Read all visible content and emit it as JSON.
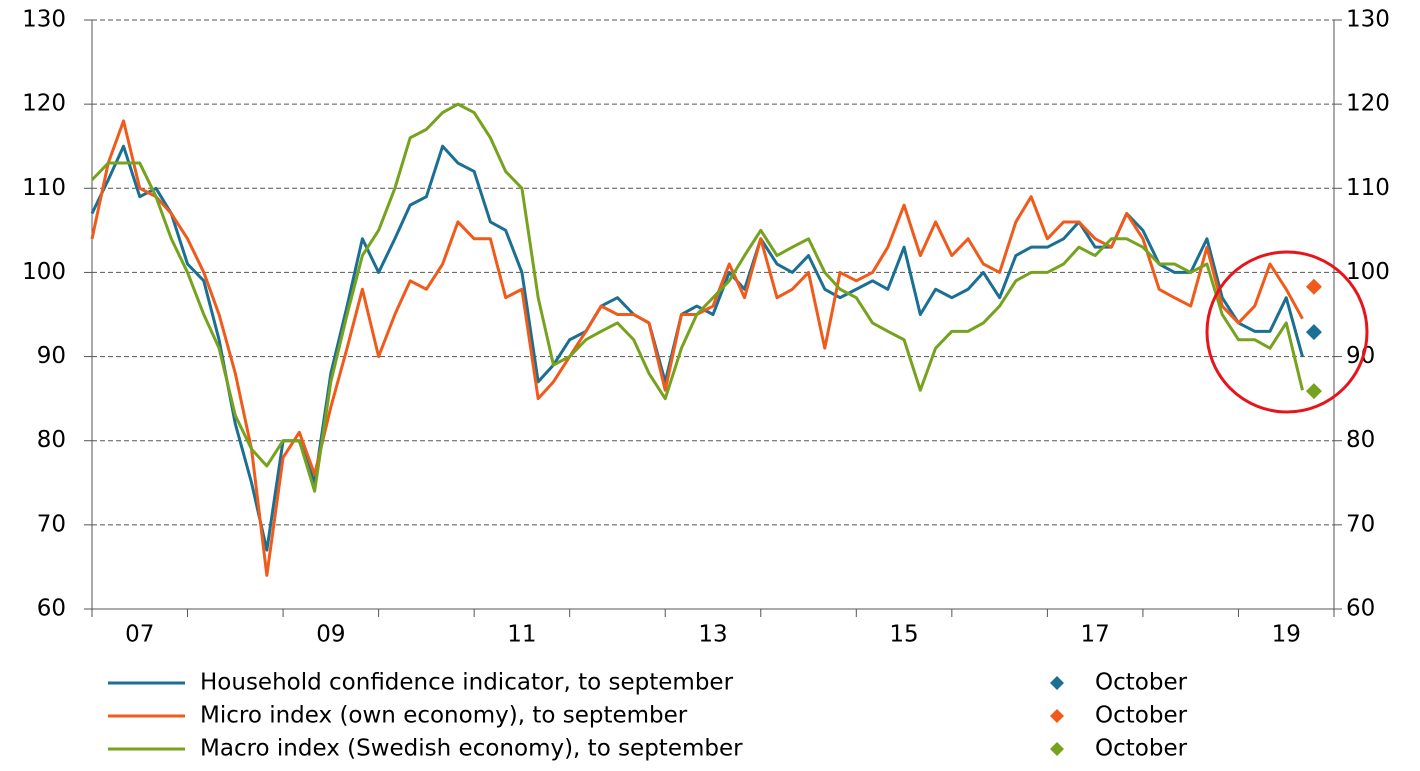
{
  "chart_data": {
    "type": "line",
    "x": [
      2007,
      2007.17,
      2007.33,
      2007.5,
      2007.67,
      2007.83,
      2008,
      2008.17,
      2008.33,
      2008.5,
      2008.67,
      2008.83,
      2009,
      2009.17,
      2009.33,
      2009.5,
      2009.67,
      2009.83,
      2010,
      2010.17,
      2010.33,
      2010.5,
      2010.67,
      2010.83,
      2011,
      2011.17,
      2011.33,
      2011.5,
      2011.67,
      2011.83,
      2012,
      2012.17,
      2012.33,
      2012.5,
      2012.67,
      2012.83,
      2013,
      2013.17,
      2013.33,
      2013.5,
      2013.67,
      2013.83,
      2014,
      2014.17,
      2014.33,
      2014.5,
      2014.67,
      2014.83,
      2015,
      2015.17,
      2015.33,
      2015.5,
      2015.67,
      2015.83,
      2016,
      2016.17,
      2016.33,
      2016.5,
      2016.67,
      2016.83,
      2017,
      2017.17,
      2017.33,
      2017.5,
      2017.67,
      2017.83,
      2018,
      2018.17,
      2018.33,
      2018.5,
      2018.67,
      2018.83,
      2019,
      2019.17,
      2019.33,
      2019.5,
      2019.67
    ],
    "series": [
      {
        "name": "Household confidence indicator, to september",
        "color": "#1a6f93",
        "values": [
          107,
          111,
          115,
          109,
          110,
          107,
          101,
          99,
          92,
          82,
          75,
          67,
          80,
          80,
          75,
          88,
          96,
          104,
          100,
          104,
          108,
          109,
          115,
          113,
          112,
          106,
          105,
          100,
          87,
          89,
          92,
          93,
          96,
          97,
          95,
          94,
          87,
          95,
          96,
          95,
          100,
          98,
          104,
          101,
          100,
          102,
          98,
          97,
          98,
          99,
          98,
          103,
          95,
          98,
          97,
          98,
          100,
          97,
          102,
          103,
          103,
          104,
          106,
          103,
          103,
          107,
          105,
          101,
          100,
          100,
          104,
          97,
          94,
          93,
          93,
          97,
          90
        ]
      },
      {
        "name": "Micro index (own economy), to september",
        "color": "#f05a1a",
        "values": [
          104,
          113,
          118,
          110,
          109,
          107,
          104,
          100,
          95,
          88,
          79,
          64,
          78,
          81,
          76,
          84,
          91,
          98,
          90,
          95,
          99,
          98,
          101,
          106,
          104,
          104,
          97,
          98,
          85,
          87,
          90,
          93,
          96,
          95,
          95,
          94,
          86,
          95,
          95,
          96,
          101,
          97,
          104,
          97,
          98,
          100,
          91,
          100,
          99,
          100,
          103,
          108,
          102,
          106,
          102,
          104,
          101,
          100,
          106,
          109,
          104,
          106,
          106,
          104,
          103,
          107,
          104,
          98,
          97,
          96,
          103,
          96,
          94,
          96,
          101,
          98,
          94.5
        ]
      },
      {
        "name": "Macro index (Swedish economy), to september",
        "color": "#76a21e",
        "values": [
          111,
          113,
          113,
          113,
          109,
          104,
          100,
          95,
          91,
          83,
          79,
          77,
          80,
          80,
          74,
          87,
          95,
          102,
          105,
          110,
          116,
          117,
          119,
          120,
          119,
          116,
          112,
          110,
          97,
          89,
          90,
          92,
          93,
          94,
          92,
          88,
          85,
          91,
          95,
          97,
          99,
          102,
          105,
          102,
          103,
          104,
          100,
          98,
          97,
          94,
          93,
          92,
          86,
          91,
          93,
          93,
          94,
          96,
          99,
          100,
          100,
          101,
          103,
          102,
          104,
          104,
          103,
          101,
          101,
          100,
          101,
          95,
          92,
          92,
          91,
          94,
          86
        ]
      }
    ],
    "october": [
      {
        "name": "October",
        "color": "#1a6f93",
        "x": 2019.79,
        "value": 92.9
      },
      {
        "name": "October",
        "color": "#f05a1a",
        "x": 2019.79,
        "value": 98.3
      },
      {
        "name": "October",
        "color": "#76a21e",
        "x": 2019.79,
        "value": 85.9
      }
    ],
    "xlim": [
      2007,
      2020
    ],
    "xticks": [
      {
        "value": 2007.5,
        "label": "07"
      },
      {
        "value": 2009.5,
        "label": "09"
      },
      {
        "value": 2011.5,
        "label": "11"
      },
      {
        "value": 2013.5,
        "label": "13"
      },
      {
        "value": 2015.5,
        "label": "15"
      },
      {
        "value": 2017.5,
        "label": "17"
      },
      {
        "value": 2019.5,
        "label": "19"
      }
    ],
    "xtick_marks": [
      2007,
      2008,
      2009,
      2010,
      2011,
      2012,
      2013,
      2014,
      2015,
      2016,
      2017,
      2018,
      2019,
      2020
    ],
    "ylim": [
      60,
      130
    ],
    "yticks": [
      60,
      70,
      80,
      90,
      100,
      110,
      120,
      130
    ],
    "y2lim": [
      60,
      130
    ],
    "y2ticks": [
      60,
      70,
      80,
      90,
      100,
      110,
      120,
      130
    ],
    "grid": true
  }
}
